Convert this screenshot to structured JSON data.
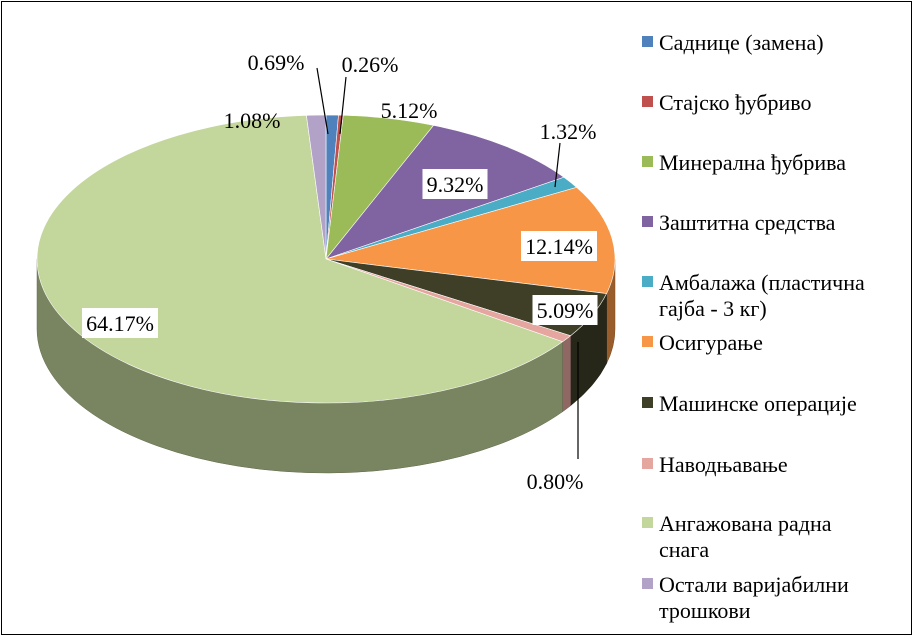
{
  "chart_data": {
    "type": "pie",
    "style": "3d",
    "categories": [
      "Саднице (замена)",
      "Стајско ђубриво",
      "Минерална ђубрива",
      "Заштитна средства",
      "Амбалажа (пластична гајба - 3 кг)",
      "Осигурање",
      "Машинске операције",
      "Наводњавање",
      "Ангажована радна снага",
      "Остали варијабилни трошкови"
    ],
    "values": [
      0.69,
      0.26,
      5.12,
      9.32,
      1.32,
      12.14,
      5.09,
      0.8,
      64.17,
      1.08
    ],
    "value_labels": [
      "0.69%",
      "0.26%",
      "5.12%",
      "9.32%",
      "1.32%",
      "12.14%",
      "5.09%",
      "0.80%",
      "64.17%",
      "1.08%"
    ],
    "colors": [
      "#4F81BD",
      "#C0504D",
      "#9BBB59",
      "#8064A2",
      "#4BACC6",
      "#F79646",
      "#3F3F28",
      "#E6A6A0",
      "#C3D69B",
      "#B3A2C7"
    ],
    "legend_position": "right",
    "legend_lines": [
      [
        "Саднице (замена)"
      ],
      [
        "Стајско ђубриво"
      ],
      [
        "Минерална ђубрива"
      ],
      [
        "Заштитна средства"
      ],
      [
        "Амбалажа (пластична",
        "гајба - 3 кг)"
      ],
      [
        "Осигурање"
      ],
      [
        "Машинске операције"
      ],
      [
        "Наводњавање"
      ],
      [
        "Ангажована радна",
        "снага"
      ],
      [
        "Остали варијабилни",
        "трошкови"
      ]
    ]
  }
}
